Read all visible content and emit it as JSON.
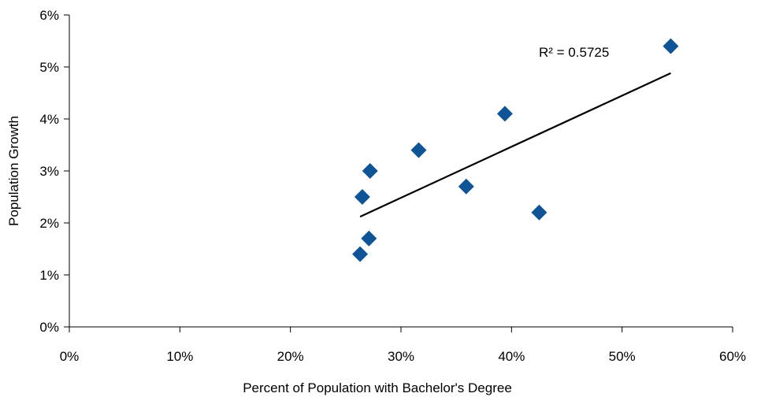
{
  "chart_data": {
    "type": "scatter",
    "xlabel": "Percent of Population with Bachelor's Degree",
    "ylabel": "Population Growth",
    "xlim": [
      0,
      60
    ],
    "ylim": [
      0,
      6
    ],
    "x_ticks": [
      0,
      10,
      20,
      30,
      40,
      50,
      60
    ],
    "y_ticks": [
      0,
      1,
      2,
      3,
      4,
      5,
      6
    ],
    "x_tick_labels": [
      "0%",
      "10%",
      "20%",
      "30%",
      "40%",
      "50%",
      "60%"
    ],
    "y_tick_labels": [
      "0%",
      "1%",
      "2%",
      "3%",
      "4%",
      "5%",
      "6%"
    ],
    "grid": false,
    "points": [
      {
        "x": 26.3,
        "y": 1.4
      },
      {
        "x": 27.1,
        "y": 1.7
      },
      {
        "x": 26.5,
        "y": 2.5
      },
      {
        "x": 27.2,
        "y": 3.0
      },
      {
        "x": 31.6,
        "y": 3.4
      },
      {
        "x": 35.9,
        "y": 2.7
      },
      {
        "x": 39.4,
        "y": 4.1
      },
      {
        "x": 42.5,
        "y": 2.2
      },
      {
        "x": 54.4,
        "y": 5.4
      }
    ],
    "trendline": {
      "x": [
        26.3,
        54.4
      ],
      "y": [
        2.12,
        4.88
      ]
    },
    "annotation": "R² = 0.5725",
    "marker_color": "#0f5496"
  }
}
